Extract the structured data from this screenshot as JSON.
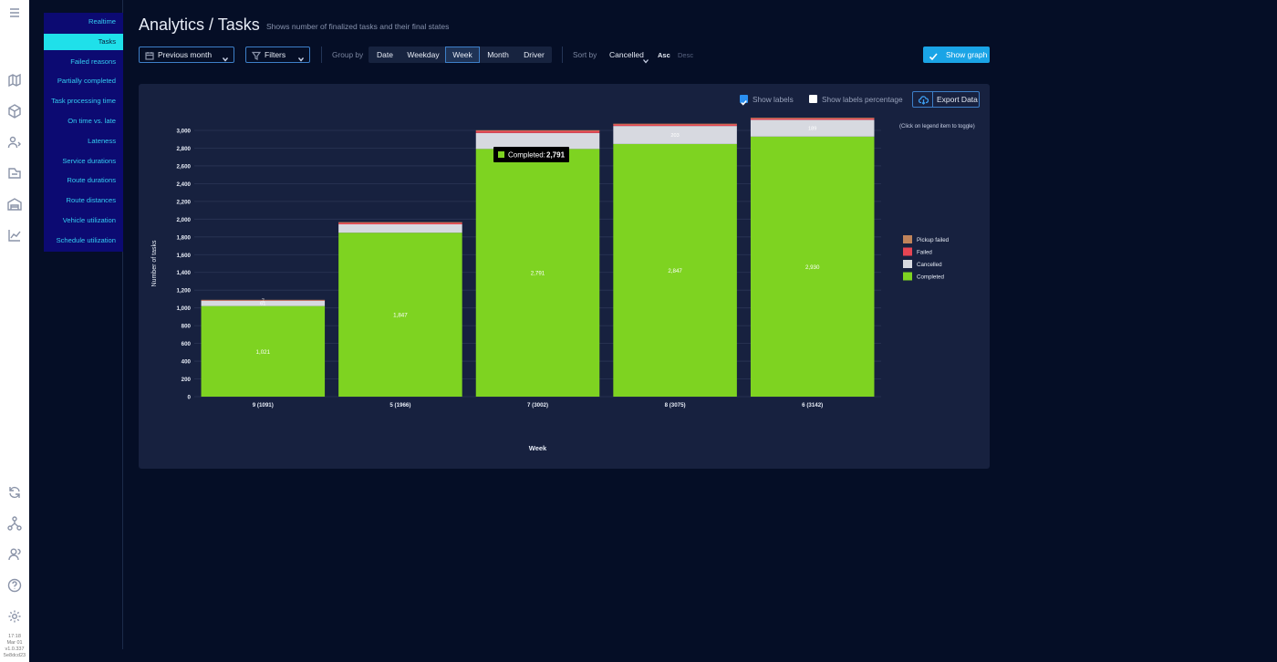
{
  "rail": {
    "icons": [
      "menu-icon",
      "map-icon",
      "box-icon",
      "route-user-icon",
      "tasks-icon",
      "warehouse-icon",
      "analytics-icon",
      "sync-icon",
      "network-icon",
      "users-icon",
      "help-icon",
      "settings-icon"
    ],
    "time": "17:18",
    "date": "Mar 01",
    "version": "v1.0.337",
    "build": "5e8dcd23"
  },
  "subnav": {
    "items": [
      {
        "label": "Realtime",
        "active": false
      },
      {
        "label": "Tasks",
        "active": true
      },
      {
        "label": "Failed reasons",
        "active": false
      },
      {
        "label": "Partially completed",
        "active": false
      },
      {
        "label": "Task processing time",
        "active": false
      },
      {
        "label": "On time vs. late",
        "active": false
      },
      {
        "label": "Lateness",
        "active": false
      },
      {
        "label": "Service durations",
        "active": false
      },
      {
        "label": "Route durations",
        "active": false
      },
      {
        "label": "Route distances",
        "active": false
      },
      {
        "label": "Vehicle utilization",
        "active": false
      },
      {
        "label": "Schedule utilization",
        "active": false
      }
    ]
  },
  "header": {
    "title": "Analytics / Tasks",
    "subtitle": "Shows number of finalized tasks and their final states"
  },
  "toolbar": {
    "period": "Previous month",
    "filters": "Filters",
    "group_by_label": "Group by",
    "group_by_options": [
      "Date",
      "Weekday",
      "Week",
      "Month",
      "Driver"
    ],
    "group_by_selected": "Week",
    "sort_by_label": "Sort by",
    "sort_by_value": "Cancelled",
    "asc": "Asc",
    "desc": "Desc",
    "show_graph": "Show graph"
  },
  "panel": {
    "show_labels": "Show labels",
    "show_labels_checked": true,
    "show_labels_percentage": "Show labels percentage",
    "show_labels_percentage_checked": false,
    "export": "Export Data",
    "legend_hint": "(Click on legend item to toggle)"
  },
  "tooltip": {
    "label": "Completed:",
    "value": "2,791"
  },
  "colors": {
    "completed": "#7ed321",
    "cancelled": "#d7d9e0",
    "failed": "#e64553",
    "pickup_failed": "#c0835a",
    "accent": "#1aa4e6",
    "active_menu": "#1fe0ea"
  },
  "chart_data": {
    "type": "bar",
    "stacked": true,
    "categories": [
      "9 (1091)",
      "5 (1966)",
      "7 (3002)",
      "8 (3075)",
      "6 (3142)"
    ],
    "series": [
      {
        "name": "Completed",
        "values": [
          1021,
          1847,
          2791,
          2847,
          2930
        ],
        "labels": [
          "1,021",
          "1,847",
          "2,791",
          "2,847",
          "2,930"
        ]
      },
      {
        "name": "Cancelled",
        "values": [
          61,
          95,
          180,
          203,
          189
        ],
        "labels": [
          "61",
          "",
          "",
          "203",
          "189"
        ]
      },
      {
        "name": "Failed",
        "values": [
          7,
          22,
          28,
          23,
          21
        ],
        "labels": [
          "7",
          "",
          "",
          "",
          ""
        ]
      },
      {
        "name": "Pickup failed",
        "values": [
          2,
          2,
          3,
          2,
          2
        ],
        "labels": [
          "",
          "",
          "",
          "",
          ""
        ]
      }
    ],
    "legend": [
      "Pickup failed",
      "Failed",
      "Cancelled",
      "Completed"
    ],
    "legend_position": "right",
    "xlabel": "Week",
    "ylabel": "Number of tasks",
    "ylim": [
      0,
      3000
    ],
    "yticks": [
      0,
      200,
      400,
      600,
      800,
      1000,
      1200,
      1400,
      1600,
      1800,
      2000,
      2200,
      2400,
      2600,
      2800,
      3000
    ],
    "ytick_labels": [
      "0",
      "200",
      "400",
      "600",
      "800",
      "1,000",
      "1,200",
      "1,400",
      "1,600",
      "1,800",
      "2,000",
      "2,200",
      "2,400",
      "2,600",
      "2,800",
      "3,000"
    ],
    "grid": true
  }
}
